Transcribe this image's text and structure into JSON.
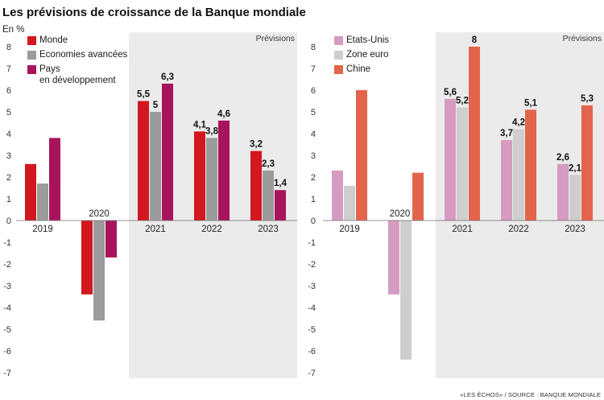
{
  "title": "Les prévisions de croissance de la Banque mondiale",
  "source": "«LES ÉCHOS» / SOURCE : BANQUE MONDIALE",
  "chart_data": [
    {
      "type": "bar",
      "ylabel": "En %",
      "categories": [
        "2019",
        "2020",
        "2021",
        "2022",
        "2023"
      ],
      "ylim": [
        -7,
        8
      ],
      "yticks": [
        8,
        7,
        6,
        5,
        4,
        3,
        2,
        1,
        0,
        -1,
        -2,
        -3,
        -4,
        -5,
        -6,
        -7
      ],
      "grid": false,
      "legend": "top-left",
      "annotation": "Prévisions",
      "forecast_start_index": 2,
      "forecast_bg": "#ebebeb",
      "series": [
        {
          "name": "Monde",
          "color": "#d2171f",
          "values": [
            2.6,
            -3.4,
            5.5,
            4.1,
            3.2
          ],
          "data_labels": [
            null,
            null,
            "5,5",
            "4,1",
            "3,2"
          ]
        },
        {
          "name": "Economies avancées",
          "color": "#9b9b9b",
          "values": [
            1.7,
            -4.6,
            5.0,
            3.8,
            2.3
          ],
          "data_labels": [
            null,
            null,
            "5",
            "3,8",
            "2,3"
          ]
        },
        {
          "name": "Pays\nen développement",
          "color": "#a8145b",
          "values": [
            3.8,
            -1.7,
            6.3,
            4.6,
            1.4
          ],
          "data_labels": [
            null,
            null,
            "6,3",
            "4,6",
            "1,4"
          ]
        }
      ]
    },
    {
      "type": "bar",
      "categories": [
        "2019",
        "2020",
        "2021",
        "2022",
        "2023"
      ],
      "ylim": [
        -7,
        8
      ],
      "yticks": [
        8,
        7,
        6,
        5,
        4,
        3,
        2,
        1,
        0,
        -1,
        -2,
        -3,
        -4,
        -5,
        -6,
        -7
      ],
      "grid": false,
      "legend": "top-left",
      "annotation": "Prévisions",
      "forecast_start_index": 2,
      "forecast_bg": "#ebebeb",
      "series": [
        {
          "name": "Etats-Unis",
          "color": "#d69bc0",
          "values": [
            2.3,
            -3.4,
            5.6,
            3.7,
            2.6
          ],
          "data_labels": [
            null,
            null,
            "5,6",
            "3,7",
            "2,6"
          ]
        },
        {
          "name": "Zone euro",
          "color": "#cecece",
          "values": [
            1.6,
            -6.4,
            5.2,
            4.2,
            2.1
          ],
          "data_labels": [
            null,
            null,
            "5,2",
            "4,2",
            "2,1"
          ]
        },
        {
          "name": "Chine",
          "color": "#e2654b",
          "values": [
            6.0,
            2.2,
            8.0,
            5.1,
            5.3
          ],
          "data_labels": [
            null,
            null,
            "8",
            "5,1",
            "5,3"
          ]
        }
      ]
    }
  ]
}
